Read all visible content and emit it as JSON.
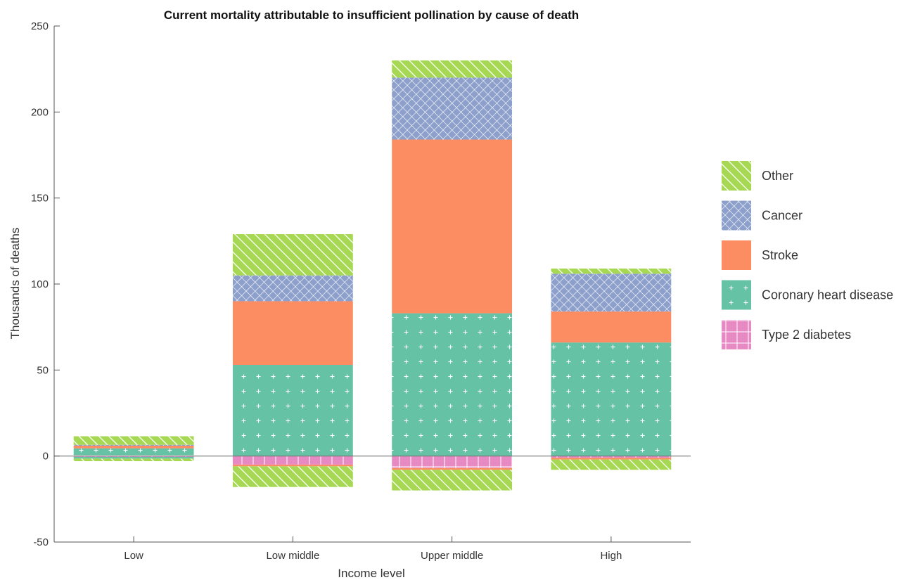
{
  "chart_data": {
    "type": "bar",
    "stacked": true,
    "title": "Current mortality attributable to insufficient pollination by cause of death",
    "xlabel": "Income level",
    "ylabel": "Thousands of deaths",
    "ylim": [
      -50,
      250
    ],
    "yticks": [
      -50,
      0,
      50,
      100,
      150,
      200,
      250
    ],
    "categories": [
      "Low",
      "Low middle",
      "Upper middle",
      "High"
    ],
    "legend_position": "right",
    "series": [
      {
        "name": "Type 2 diabetes",
        "color": "#e78ac3",
        "pattern": "grid",
        "positive": [
          0.5,
          0,
          0,
          0
        ],
        "negative": [
          -0.5,
          -5,
          -7,
          -1
        ]
      },
      {
        "name": "Coronary heart disease",
        "color": "#66c2a5",
        "pattern": "plus",
        "positive": [
          4,
          53,
          83,
          66
        ],
        "negative": [
          -1,
          0,
          0,
          0
        ]
      },
      {
        "name": "Stroke",
        "color": "#fc8d62",
        "pattern": "solid",
        "positive": [
          1.5,
          37,
          101,
          18
        ],
        "negative": [
          0,
          -1,
          -1,
          -1
        ]
      },
      {
        "name": "Cancer",
        "color": "#8da0cb",
        "pattern": "crosshatch",
        "positive": [
          0.5,
          15,
          36,
          22
        ],
        "negative": [
          0,
          0,
          0,
          0
        ]
      },
      {
        "name": "Other",
        "color": "#a6d854",
        "pattern": "diagonal",
        "positive": [
          5,
          24,
          10,
          3
        ],
        "negative": [
          -1.5,
          -12,
          -12,
          -6
        ]
      }
    ],
    "legend_order": [
      "Other",
      "Cancer",
      "Stroke",
      "Coronary heart disease",
      "Type 2 diabetes"
    ]
  }
}
